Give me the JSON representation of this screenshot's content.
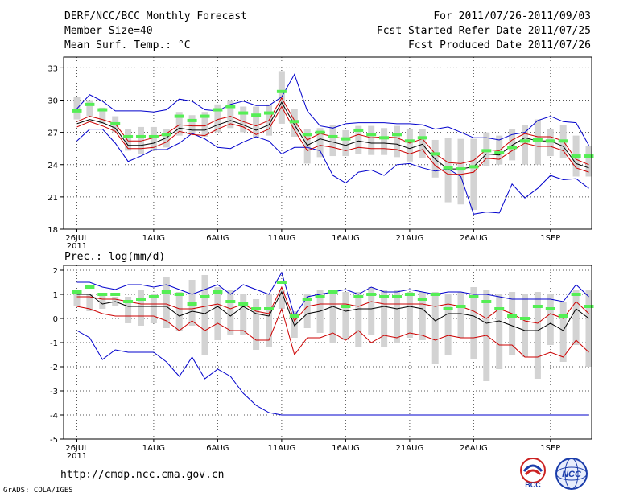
{
  "header": {
    "title": "DERF/NCC/BCC Monthly Forecast",
    "member_size": "Member Size=40",
    "variable": "Mean Surf. Temp.: °C",
    "period": "For 2011/07/26-2011/09/03",
    "refer_date": "Fcst Started Refer Date 2011/07/25",
    "produced_date": "Fcst Produced Date 2011/07/26"
  },
  "footer": {
    "url": "http://cmdp.ncc.cma.gov.cn",
    "grads": "GrADS: COLA/IGES",
    "logo_bcc": "BCC",
    "logo_ncc": "NCC"
  },
  "colors": {
    "envelope": "#0000cc",
    "quartile": "#cc0000",
    "mean": "#000000",
    "box": "#d3d3d3",
    "marker": "#55ee55",
    "grid": "#555555"
  },
  "chart_data": [
    {
      "type": "line",
      "title": "Mean Surf. Temp.: °C",
      "x_tick_labels": [
        "26JUL",
        "1AUG",
        "6AUG",
        "11AUG",
        "16AUG",
        "21AUG",
        "26AUG",
        "1SEP"
      ],
      "x_tick_days": [
        0,
        6,
        11,
        16,
        21,
        26,
        31,
        37
      ],
      "x_sublabel": "2011",
      "ylim": [
        18,
        34
      ],
      "yticks": [
        18,
        21,
        24,
        27,
        30,
        33
      ],
      "days": 41,
      "series": [
        {
          "name": "max",
          "values": [
            26.2,
            27.3,
            27.3,
            26.0,
            24.3,
            24.8,
            25.4,
            25.4,
            26.0,
            26.9,
            26.4,
            25.6,
            25.5,
            26.1,
            26.6,
            26.2,
            25.0,
            25.6,
            25.6,
            25.3,
            23.0,
            22.3,
            23.3,
            23.5,
            23.0,
            24.0,
            24.1,
            23.7,
            23.4,
            23.6,
            22.9,
            19.4,
            19.6,
            19.5,
            22.2,
            20.9,
            21.8,
            23.0,
            22.6,
            22.7,
            21.8
          ]
        },
        {
          "name": "min",
          "values": [
            29.2,
            30.5,
            29.9,
            29.0,
            29.0,
            29.0,
            28.9,
            29.1,
            30.1,
            29.9,
            29.1,
            29.0,
            29.6,
            29.9,
            29.5,
            29.5,
            30.3,
            32.4,
            29.0,
            27.6,
            27.4,
            27.8,
            27.9,
            27.9,
            27.9,
            27.8,
            27.8,
            27.7,
            27.3,
            27.5,
            27.0,
            26.5,
            26.5,
            26.3,
            26.8,
            27.0,
            28.1,
            28.5,
            28.0,
            27.9,
            25.8
          ]
        },
        {
          "name": "upper",
          "values": [
            28.0,
            28.5,
            28.2,
            27.8,
            26.2,
            26.2,
            26.5,
            26.9,
            27.7,
            27.6,
            27.6,
            28.2,
            28.5,
            28.0,
            27.6,
            28.1,
            30.2,
            28.1,
            26.3,
            26.9,
            26.6,
            26.4,
            26.8,
            26.5,
            26.6,
            26.5,
            26.0,
            26.4,
            25.0,
            24.2,
            24.1,
            24.4,
            25.4,
            25.3,
            26.3,
            26.9,
            26.6,
            26.6,
            26.2,
            24.5,
            24.0
          ]
        },
        {
          "name": "lower",
          "values": [
            27.5,
            28.0,
            27.6,
            27.1,
            25.5,
            25.5,
            25.6,
            26.1,
            27.1,
            26.8,
            26.7,
            27.3,
            27.8,
            27.5,
            26.8,
            27.3,
            29.4,
            27.2,
            25.3,
            25.8,
            25.6,
            25.3,
            25.6,
            25.5,
            25.5,
            25.4,
            25.0,
            25.4,
            23.9,
            23.1,
            23.1,
            23.3,
            24.6,
            24.5,
            25.3,
            26.0,
            25.7,
            25.7,
            25.3,
            23.7,
            23.3
          ]
        },
        {
          "name": "mean",
          "values": [
            27.8,
            28.2,
            27.9,
            27.4,
            25.8,
            25.8,
            26.0,
            26.5,
            27.4,
            27.2,
            27.2,
            27.7,
            28.1,
            27.7,
            27.2,
            27.7,
            29.8,
            27.7,
            25.8,
            26.4,
            26.1,
            25.8,
            26.2,
            26.0,
            26.0,
            25.9,
            25.5,
            25.9,
            24.5,
            23.6,
            23.6,
            23.8,
            25.0,
            24.9,
            25.8,
            26.5,
            26.2,
            26.2,
            25.7,
            24.1,
            23.7
          ]
        },
        {
          "name": "markers",
          "values": [
            29.0,
            29.6,
            29.1,
            27.8,
            26.6,
            26.6,
            26.6,
            26.8,
            28.5,
            28.1,
            28.5,
            29.1,
            29.4,
            28.8,
            28.6,
            28.8,
            30.8,
            28.0,
            26.8,
            27.0,
            26.6,
            26.4,
            27.2,
            26.8,
            26.5,
            26.8,
            26.2,
            26.5,
            25.0,
            23.7,
            23.6,
            23.8,
            25.3,
            25.1,
            25.6,
            26.2,
            26.3,
            26.2,
            26.2,
            24.8,
            24.8
          ]
        },
        {
          "name": "box_top",
          "values": [
            30.3,
            30.0,
            29.3,
            28.5,
            27.3,
            27.5,
            27.5,
            27.3,
            28.9,
            28.6,
            28.9,
            29.6,
            30.0,
            29.4,
            29.4,
            29.6,
            32.7,
            29.2,
            27.3,
            27.4,
            27.7,
            27.2,
            27.6,
            27.6,
            27.4,
            27.6,
            27.3,
            27.3,
            26.3,
            26.5,
            26.4,
            26.4,
            27.0,
            26.7,
            27.3,
            27.7,
            28.2,
            27.3,
            27.7,
            26.7,
            25.7
          ]
        },
        {
          "name": "box_bottom",
          "values": [
            28.2,
            28.5,
            27.8,
            27.0,
            25.3,
            25.0,
            25.3,
            25.6,
            26.7,
            26.8,
            26.6,
            27.0,
            27.4,
            27.0,
            26.5,
            26.7,
            27.8,
            26.6,
            24.1,
            24.7,
            24.8,
            24.8,
            25.0,
            24.9,
            24.9,
            24.7,
            24.3,
            24.6,
            22.8,
            20.5,
            20.3,
            19.8,
            23.9,
            24.0,
            24.4,
            24.0,
            24.0,
            24.8,
            24.6,
            22.9,
            22.9
          ]
        }
      ]
    },
    {
      "type": "line",
      "title": "Prec.: log(mm/d)",
      "x_tick_labels": [
        "26JUL",
        "1AUG",
        "6AUG",
        "11AUG",
        "16AUG",
        "21AUG",
        "26AUG",
        "1SEP"
      ],
      "x_tick_days": [
        0,
        6,
        11,
        16,
        21,
        26,
        31,
        37
      ],
      "x_sublabel": "2011",
      "ylim": [
        -5,
        2.2
      ],
      "yticks": [
        -5,
        -4,
        -3,
        -2,
        -1,
        0,
        1,
        2
      ],
      "days": 41,
      "series": [
        {
          "name": "max",
          "values": [
            1.5,
            1.5,
            1.3,
            1.2,
            1.4,
            1.4,
            1.3,
            1.4,
            1.2,
            1.0,
            1.2,
            1.4,
            1.0,
            1.4,
            1.2,
            1.0,
            1.9,
            0.1,
            0.9,
            1.0,
            1.1,
            1.2,
            1.0,
            1.3,
            1.1,
            1.1,
            1.2,
            1.1,
            1.0,
            1.1,
            1.1,
            1.0,
            1.0,
            0.9,
            0.8,
            0.8,
            0.8,
            0.8,
            0.7,
            1.4,
            0.9
          ]
        },
        {
          "name": "min",
          "values": [
            -0.5,
            -0.8,
            -1.7,
            -1.3,
            -1.4,
            -1.4,
            -1.4,
            -1.8,
            -2.4,
            -1.6,
            -2.5,
            -2.1,
            -2.4,
            -3.1,
            -3.6,
            -3.9,
            -4.0,
            -4.0,
            -4.0,
            -4.0,
            -4.0,
            -4.0,
            -4.0,
            -4.0,
            -4.0,
            -4.0,
            -4.0,
            -4.0,
            -4.0,
            -4.0,
            -4.0,
            -4.0,
            -4.0,
            -4.0,
            -4.0,
            -4.0,
            -4.0,
            -4.0,
            -4.0,
            -4.0,
            -4.0
          ]
        },
        {
          "name": "upper",
          "values": [
            0.9,
            0.9,
            0.8,
            0.8,
            0.7,
            0.6,
            0.6,
            0.6,
            0.4,
            0.4,
            0.5,
            0.6,
            0.4,
            0.6,
            0.3,
            0.2,
            1.3,
            -0.1,
            0.5,
            0.6,
            0.6,
            0.6,
            0.5,
            0.7,
            0.6,
            0.6,
            0.6,
            0.6,
            0.5,
            0.6,
            0.5,
            0.3,
            0.0,
            0.4,
            0.2,
            -0.1,
            -0.2,
            0.2,
            0.0,
            0.7,
            0.2
          ]
        },
        {
          "name": "lower",
          "values": [
            0.5,
            0.4,
            0.2,
            0.1,
            0.1,
            0.1,
            0.1,
            -0.1,
            -0.5,
            -0.1,
            -0.5,
            -0.2,
            -0.5,
            -0.5,
            -0.9,
            -0.9,
            0.4,
            -1.5,
            -0.8,
            -0.8,
            -0.6,
            -0.9,
            -0.5,
            -1.0,
            -0.7,
            -0.8,
            -0.6,
            -0.7,
            -0.9,
            -0.7,
            -0.8,
            -0.8,
            -0.7,
            -1.1,
            -1.1,
            -1.6,
            -1.6,
            -1.4,
            -1.6,
            -0.9,
            -1.4
          ]
        },
        {
          "name": "mean",
          "values": [
            1.0,
            1.0,
            0.6,
            0.7,
            0.5,
            0.5,
            0.5,
            0.5,
            0.1,
            0.3,
            0.2,
            0.5,
            0.1,
            0.5,
            0.2,
            0.1,
            1.1,
            -0.3,
            0.2,
            0.3,
            0.5,
            0.3,
            0.4,
            0.4,
            0.5,
            0.4,
            0.5,
            0.4,
            -0.1,
            0.2,
            0.2,
            0.1,
            -0.2,
            -0.1,
            -0.3,
            -0.5,
            -0.5,
            -0.2,
            -0.5,
            0.4,
            0.0
          ]
        },
        {
          "name": "markers",
          "values": [
            1.1,
            1.3,
            1.0,
            1.0,
            0.7,
            0.8,
            0.9,
            1.1,
            1.0,
            0.6,
            0.9,
            1.1,
            0.7,
            0.6,
            0.4,
            0.4,
            1.5,
            0.1,
            0.8,
            0.9,
            1.1,
            0.5,
            0.9,
            1.0,
            0.9,
            0.9,
            1.0,
            0.8,
            1.0,
            0.4,
            0.5,
            0.9,
            0.7,
            0.4,
            0.1,
            0.0,
            0.5,
            0.4,
            0.1,
            1.0,
            0.5
          ]
        },
        {
          "name": "box_top",
          "values": [
            1.0,
            1.0,
            1.0,
            0.9,
            0.9,
            1.2,
            1.0,
            1.7,
            1.1,
            1.6,
            1.8,
            1.3,
            1.2,
            1.0,
            0.8,
            1.0,
            1.2,
            0.3,
            1.0,
            1.2,
            1.2,
            1.1,
            1.1,
            1.3,
            1.2,
            1.2,
            1.1,
            1.1,
            1.1,
            1.0,
            1.1,
            1.3,
            1.2,
            1.0,
            1.1,
            1.0,
            1.1,
            1.0,
            0.7,
            1.2,
            1.2
          ]
        },
        {
          "name": "box_bottom",
          "values": [
            0.5,
            0.3,
            0.4,
            0.5,
            -0.2,
            -0.3,
            -0.2,
            -0.4,
            -0.5,
            -0.3,
            -1.5,
            -0.9,
            -0.7,
            -0.7,
            -1.3,
            -1.2,
            0.4,
            -0.8,
            -0.4,
            -0.6,
            -1.0,
            -0.9,
            -1.2,
            -0.7,
            -1.2,
            -1.0,
            -0.8,
            -0.9,
            -1.9,
            -1.5,
            -0.8,
            -1.7,
            -2.6,
            -2.1,
            -1.5,
            -1.6,
            -2.5,
            -1.1,
            -1.8,
            -1.1,
            -2.0
          ]
        }
      ]
    }
  ]
}
